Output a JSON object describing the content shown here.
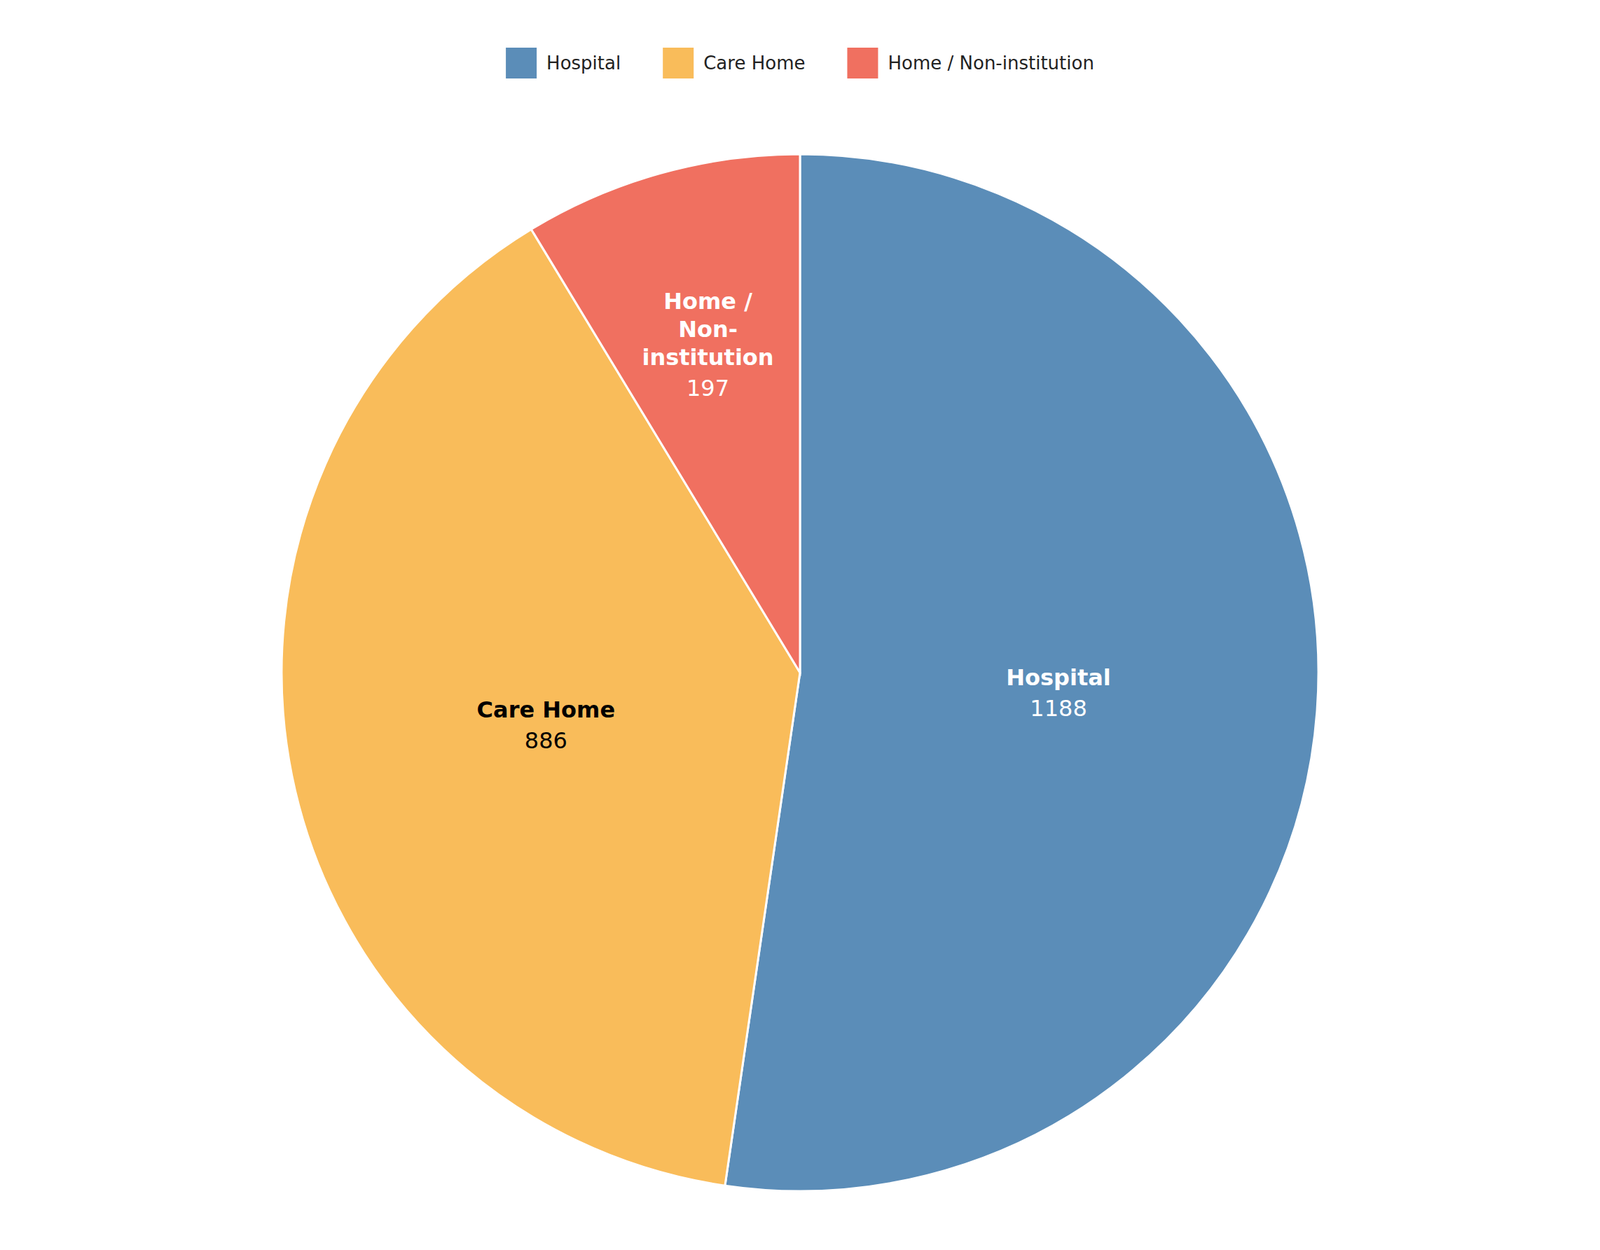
{
  "chart_data": {
    "type": "pie",
    "categories": [
      "Hospital",
      "Care Home",
      "Home / Non-institution"
    ],
    "labels": [
      "Hospital",
      "Care Home",
      "Home /\nNon-\ninstitution"
    ],
    "values": [
      1188,
      886,
      197
    ],
    "colors": [
      "#5b8db8",
      "#f9bc5a",
      "#f07060"
    ],
    "data_labels": true,
    "legend": "top"
  }
}
